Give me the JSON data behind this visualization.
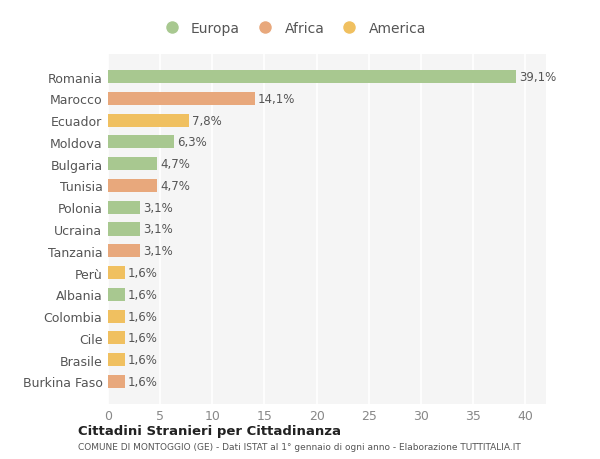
{
  "categories": [
    "Burkina Faso",
    "Brasile",
    "Cile",
    "Colombia",
    "Albania",
    "Perù",
    "Tanzania",
    "Ucraina",
    "Polonia",
    "Tunisia",
    "Bulgaria",
    "Moldova",
    "Ecuador",
    "Marocco",
    "Romania"
  ],
  "values": [
    1.6,
    1.6,
    1.6,
    1.6,
    1.6,
    1.6,
    3.1,
    3.1,
    3.1,
    4.7,
    4.7,
    6.3,
    7.8,
    14.1,
    39.1
  ],
  "labels": [
    "1,6%",
    "1,6%",
    "1,6%",
    "1,6%",
    "1,6%",
    "1,6%",
    "3,1%",
    "3,1%",
    "3,1%",
    "4,7%",
    "4,7%",
    "6,3%",
    "7,8%",
    "14,1%",
    "39,1%"
  ],
  "colors": [
    "#e8a87c",
    "#f0c060",
    "#f0c060",
    "#f0c060",
    "#a8c890",
    "#f0c060",
    "#e8a87c",
    "#a8c890",
    "#a8c890",
    "#e8a87c",
    "#a8c890",
    "#a8c890",
    "#f0c060",
    "#e8a87c",
    "#a8c890"
  ],
  "legend_labels": [
    "Europa",
    "Africa",
    "America"
  ],
  "legend_colors": [
    "#a8c890",
    "#e8a87c",
    "#f0c060"
  ],
  "title": "Cittadini Stranieri per Cittadinanza",
  "subtitle": "COMUNE DI MONTOGGIO (GE) - Dati ISTAT al 1° gennaio di ogni anno - Elaborazione TUTTITALIA.IT",
  "xlim": [
    0,
    42
  ],
  "xticks": [
    0,
    5,
    10,
    15,
    20,
    25,
    30,
    35,
    40
  ],
  "bg_color": "#ffffff",
  "plot_bg_color": "#f5f5f5",
  "grid_color": "#ffffff",
  "bar_height": 0.6,
  "label_fontsize": 8.5,
  "tick_fontsize": 9,
  "legend_fontsize": 10
}
